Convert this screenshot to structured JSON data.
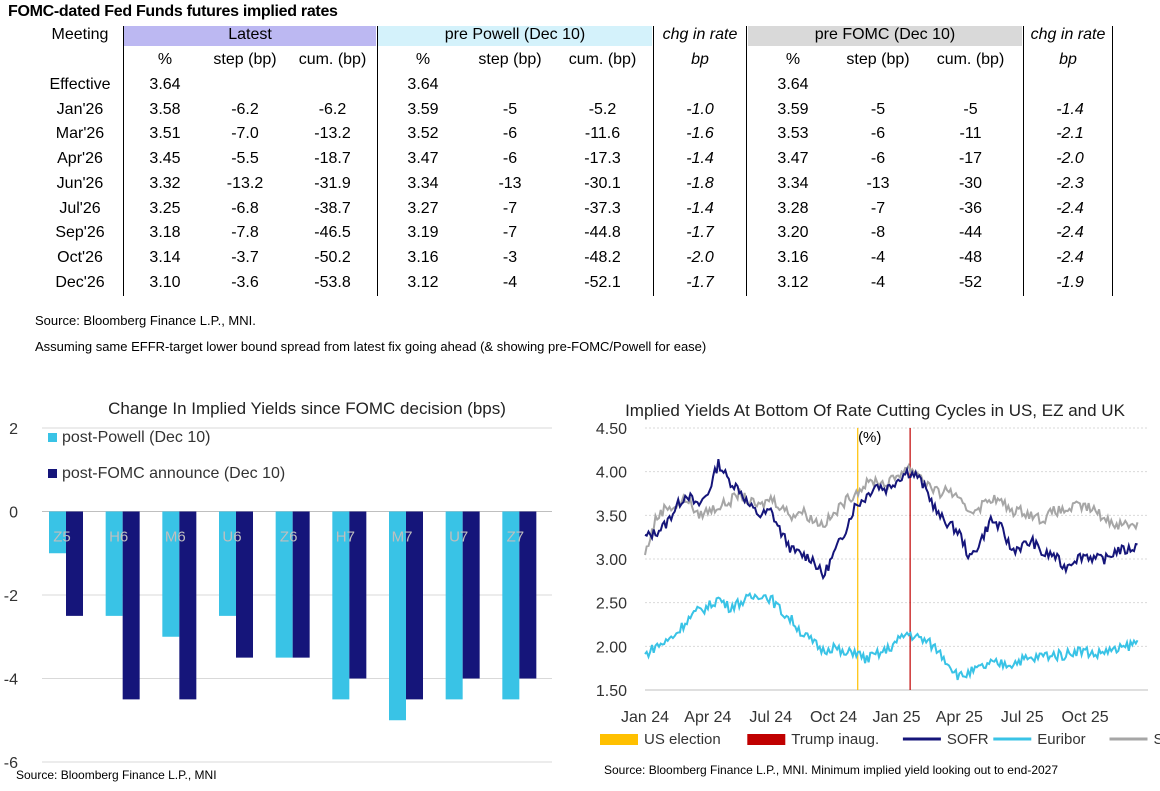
{
  "table": {
    "title": "FOMC-dated Fed Funds futures implied rates",
    "meeting_label": "Meeting",
    "groups": {
      "latest": "Latest",
      "pre_powell": "pre Powell (Dec 10)",
      "chg_powell": "chg in rate",
      "pre_fomc": "pre FOMC (Dec 10)",
      "chg_fomc": "chg in rate"
    },
    "subheaders": {
      "pct": "%",
      "step": "step (bp)",
      "cum": "cum. (bp)",
      "bp": "bp"
    },
    "colors": {
      "latest": "#bcb8f2",
      "pre_powell": "#d4f2fb",
      "pre_fomc": "#d9d9d9"
    },
    "rows": [
      {
        "m": "Effective",
        "l_pct": "3.64",
        "l_step": "",
        "l_cum": "",
        "p_pct": "3.64",
        "p_step": "",
        "p_cum": "",
        "p_chg": "",
        "f_pct": "3.64",
        "f_step": "",
        "f_cum": "",
        "f_chg": ""
      },
      {
        "m": "Jan'26",
        "l_pct": "3.58",
        "l_step": "-6.2",
        "l_cum": "-6.2",
        "p_pct": "3.59",
        "p_step": "-5",
        "p_cum": "-5.2",
        "p_chg": "-1.0",
        "f_pct": "3.59",
        "f_step": "-5",
        "f_cum": "-5",
        "f_chg": "-1.4"
      },
      {
        "m": "Mar'26",
        "l_pct": "3.51",
        "l_step": "-7.0",
        "l_cum": "-13.2",
        "p_pct": "3.52",
        "p_step": "-6",
        "p_cum": "-11.6",
        "p_chg": "-1.6",
        "f_pct": "3.53",
        "f_step": "-6",
        "f_cum": "-11",
        "f_chg": "-2.1"
      },
      {
        "m": "Apr'26",
        "l_pct": "3.45",
        "l_step": "-5.5",
        "l_cum": "-18.7",
        "p_pct": "3.47",
        "p_step": "-6",
        "p_cum": "-17.3",
        "p_chg": "-1.4",
        "f_pct": "3.47",
        "f_step": "-6",
        "f_cum": "-17",
        "f_chg": "-2.0"
      },
      {
        "m": "Jun'26",
        "l_pct": "3.32",
        "l_step": "-13.2",
        "l_cum": "-31.9",
        "p_pct": "3.34",
        "p_step": "-13",
        "p_cum": "-30.1",
        "p_chg": "-1.8",
        "f_pct": "3.34",
        "f_step": "-13",
        "f_cum": "-30",
        "f_chg": "-2.3"
      },
      {
        "m": "Jul'26",
        "l_pct": "3.25",
        "l_step": "-6.8",
        "l_cum": "-38.7",
        "p_pct": "3.27",
        "p_step": "-7",
        "p_cum": "-37.3",
        "p_chg": "-1.4",
        "f_pct": "3.28",
        "f_step": "-7",
        "f_cum": "-36",
        "f_chg": "-2.4"
      },
      {
        "m": "Sep'26",
        "l_pct": "3.18",
        "l_step": "-7.8",
        "l_cum": "-46.5",
        "p_pct": "3.19",
        "p_step": "-7",
        "p_cum": "-44.8",
        "p_chg": "-1.7",
        "f_pct": "3.20",
        "f_step": "-8",
        "f_cum": "-44",
        "f_chg": "-2.4"
      },
      {
        "m": "Oct'26",
        "l_pct": "3.14",
        "l_step": "-3.7",
        "l_cum": "-50.2",
        "p_pct": "3.16",
        "p_step": "-3",
        "p_cum": "-48.2",
        "p_chg": "-2.0",
        "f_pct": "3.16",
        "f_step": "-4",
        "f_cum": "-48",
        "f_chg": "-2.4"
      },
      {
        "m": "Dec'26",
        "l_pct": "3.10",
        "l_step": "-3.6",
        "l_cum": "-53.8",
        "p_pct": "3.12",
        "p_step": "-4",
        "p_cum": "-52.1",
        "p_chg": "-1.7",
        "f_pct": "3.12",
        "f_step": "-4",
        "f_cum": "-52",
        "f_chg": "-1.9"
      }
    ]
  },
  "notes": {
    "source": "Source: Bloomberg Finance L.P., MNI.",
    "assumption": "Assuming same  EFFR-target lower bound spread from latest fix going ahead (& showing pre-FOMC/Powell for ease)"
  },
  "chart_data": [
    {
      "type": "bar",
      "title": "Change In Implied Yields since FOMC decision (bps)",
      "source": "Source: Bloomberg Finance L.P., MNI",
      "categories": [
        "Z5",
        "H6",
        "M6",
        "U6",
        "Z6",
        "H7",
        "M7",
        "U7",
        "Z7"
      ],
      "ylim": [
        -6,
        2
      ],
      "yticks": [
        "2",
        "0",
        "-2",
        "-4",
        "-6"
      ],
      "series": [
        {
          "name": "post-Powell (Dec 10)",
          "color": "#39c3e6",
          "values": [
            -1,
            -2.5,
            -3,
            -2.5,
            -3.5,
            -4.5,
            -5,
            -4.5,
            -4.5
          ]
        },
        {
          "name": "post-FOMC announce (Dec 10)",
          "color": "#15157a",
          "values": [
            -2.5,
            -4.5,
            -4.5,
            -3.5,
            -3.5,
            -4,
            -4.5,
            -4,
            -4
          ]
        }
      ]
    },
    {
      "type": "line",
      "title": "Implied Yields At Bottom Of Rate Cutting Cycles in US, EZ and UK",
      "unit_label": "(%)",
      "source": "Source: Bloomberg Finance L.P., MNI. Minimum implied yield looking out to end-2027",
      "ylim": [
        1.5,
        4.5
      ],
      "yticks": [
        "4.50",
        "4.00",
        "3.50",
        "3.00",
        "2.50",
        "2.00",
        "1.50"
      ],
      "xlim_months": [
        0,
        24
      ],
      "xticks": [
        {
          "label": "Jan 24",
          "m": 0
        },
        {
          "label": "Apr 24",
          "m": 3
        },
        {
          "label": "Jul 24",
          "m": 6
        },
        {
          "label": "Oct 24",
          "m": 9
        },
        {
          "label": "Jan 25",
          "m": 12
        },
        {
          "label": "Apr 25",
          "m": 15
        },
        {
          "label": "Jul 25",
          "m": 18
        },
        {
          "label": "Oct 25",
          "m": 21
        }
      ],
      "events": [
        {
          "name": "US election",
          "m": 10.15,
          "color": "#ffc000"
        },
        {
          "name": "Trump inaug.",
          "m": 12.65,
          "color": "#c00000"
        }
      ],
      "series": [
        {
          "name": "SOFR",
          "color": "#15157a",
          "points": [
            [
              0,
              3.25
            ],
            [
              0.5,
              3.3
            ],
            [
              1,
              3.4
            ],
            [
              1.5,
              3.6
            ],
            [
              2,
              3.75
            ],
            [
              2.5,
              3.6
            ],
            [
              3,
              3.75
            ],
            [
              3.5,
              4.1
            ],
            [
              4,
              3.9
            ],
            [
              4.5,
              3.8
            ],
            [
              5,
              3.6
            ],
            [
              5.5,
              3.5
            ],
            [
              6,
              3.55
            ],
            [
              6.5,
              3.3
            ],
            [
              7,
              3.1
            ],
            [
              7.5,
              3.05
            ],
            [
              8,
              3.0
            ],
            [
              8.5,
              2.8
            ],
            [
              9,
              3.05
            ],
            [
              9.5,
              3.3
            ],
            [
              10,
              3.6
            ],
            [
              10.5,
              3.7
            ],
            [
              11,
              3.85
            ],
            [
              11.5,
              3.8
            ],
            [
              12,
              3.9
            ],
            [
              12.5,
              4.0
            ],
            [
              13,
              3.95
            ],
            [
              13.5,
              3.75
            ],
            [
              14,
              3.5
            ],
            [
              14.5,
              3.4
            ],
            [
              15,
              3.3
            ],
            [
              15.5,
              3.0
            ],
            [
              16,
              3.2
            ],
            [
              16.5,
              3.45
            ],
            [
              17,
              3.35
            ],
            [
              17.5,
              3.1
            ],
            [
              18,
              3.15
            ],
            [
              18.5,
              3.2
            ],
            [
              19,
              3.05
            ],
            [
              19.5,
              3.05
            ],
            [
              20,
              2.9
            ],
            [
              20.5,
              3.0
            ],
            [
              21,
              3.05
            ],
            [
              21.5,
              3.0
            ],
            [
              22,
              3.0
            ],
            [
              22.5,
              3.1
            ],
            [
              23,
              3.1
            ],
            [
              23.5,
              3.15
            ]
          ]
        },
        {
          "name": "Euribor",
          "color": "#39c3e6",
          "points": [
            [
              0,
              1.9
            ],
            [
              0.5,
              2.0
            ],
            [
              1,
              2.05
            ],
            [
              1.5,
              2.15
            ],
            [
              2,
              2.3
            ],
            [
              2.5,
              2.4
            ],
            [
              3,
              2.45
            ],
            [
              3.5,
              2.55
            ],
            [
              4,
              2.45
            ],
            [
              4.5,
              2.5
            ],
            [
              5,
              2.55
            ],
            [
              5.5,
              2.6
            ],
            [
              6,
              2.55
            ],
            [
              6.5,
              2.4
            ],
            [
              7,
              2.3
            ],
            [
              7.5,
              2.15
            ],
            [
              8,
              2.05
            ],
            [
              8.5,
              1.95
            ],
            [
              9,
              2.0
            ],
            [
              9.5,
              1.9
            ],
            [
              10,
              1.95
            ],
            [
              10.5,
              1.85
            ],
            [
              11,
              1.9
            ],
            [
              11.5,
              1.95
            ],
            [
              12,
              2.05
            ],
            [
              12.5,
              2.15
            ],
            [
              13,
              2.1
            ],
            [
              13.5,
              2.05
            ],
            [
              14,
              1.95
            ],
            [
              14.5,
              1.8
            ],
            [
              15,
              1.65
            ],
            [
              15.5,
              1.7
            ],
            [
              16,
              1.75
            ],
            [
              16.5,
              1.8
            ],
            [
              17,
              1.8
            ],
            [
              17.5,
              1.8
            ],
            [
              18,
              1.85
            ],
            [
              18.5,
              1.85
            ],
            [
              19,
              1.9
            ],
            [
              19.5,
              1.9
            ],
            [
              20,
              1.9
            ],
            [
              20.5,
              1.95
            ],
            [
              21,
              1.95
            ],
            [
              21.5,
              1.9
            ],
            [
              22,
              1.95
            ],
            [
              22.5,
              1.95
            ],
            [
              23,
              2.0
            ],
            [
              23.5,
              2.05
            ]
          ]
        },
        {
          "name": "SONIA",
          "color": "#a6a6a6",
          "points": [
            [
              0,
              3.05
            ],
            [
              0.5,
              3.45
            ],
            [
              1,
              3.6
            ],
            [
              1.5,
              3.6
            ],
            [
              2,
              3.7
            ],
            [
              2.5,
              3.5
            ],
            [
              3,
              3.55
            ],
            [
              3.5,
              3.6
            ],
            [
              4,
              3.65
            ],
            [
              4.5,
              3.75
            ],
            [
              5,
              3.65
            ],
            [
              5.5,
              3.6
            ],
            [
              6,
              3.7
            ],
            [
              6.5,
              3.6
            ],
            [
              7,
              3.5
            ],
            [
              7.5,
              3.55
            ],
            [
              8,
              3.45
            ],
            [
              8.5,
              3.4
            ],
            [
              9,
              3.5
            ],
            [
              9.5,
              3.65
            ],
            [
              10,
              3.75
            ],
            [
              10.5,
              3.85
            ],
            [
              11,
              3.9
            ],
            [
              11.5,
              3.85
            ],
            [
              12,
              3.95
            ],
            [
              12.5,
              4.05
            ],
            [
              13,
              4.0
            ],
            [
              13.5,
              3.85
            ],
            [
              14,
              3.75
            ],
            [
              14.5,
              3.8
            ],
            [
              15,
              3.65
            ],
            [
              15.5,
              3.55
            ],
            [
              16,
              3.6
            ],
            [
              16.5,
              3.7
            ],
            [
              17,
              3.65
            ],
            [
              17.5,
              3.55
            ],
            [
              18,
              3.55
            ],
            [
              18.5,
              3.5
            ],
            [
              19,
              3.45
            ],
            [
              19.5,
              3.55
            ],
            [
              20,
              3.55
            ],
            [
              20.5,
              3.6
            ],
            [
              21,
              3.6
            ],
            [
              21.5,
              3.55
            ],
            [
              22,
              3.45
            ],
            [
              22.5,
              3.4
            ],
            [
              23,
              3.4
            ],
            [
              23.5,
              3.4
            ]
          ]
        }
      ]
    }
  ]
}
